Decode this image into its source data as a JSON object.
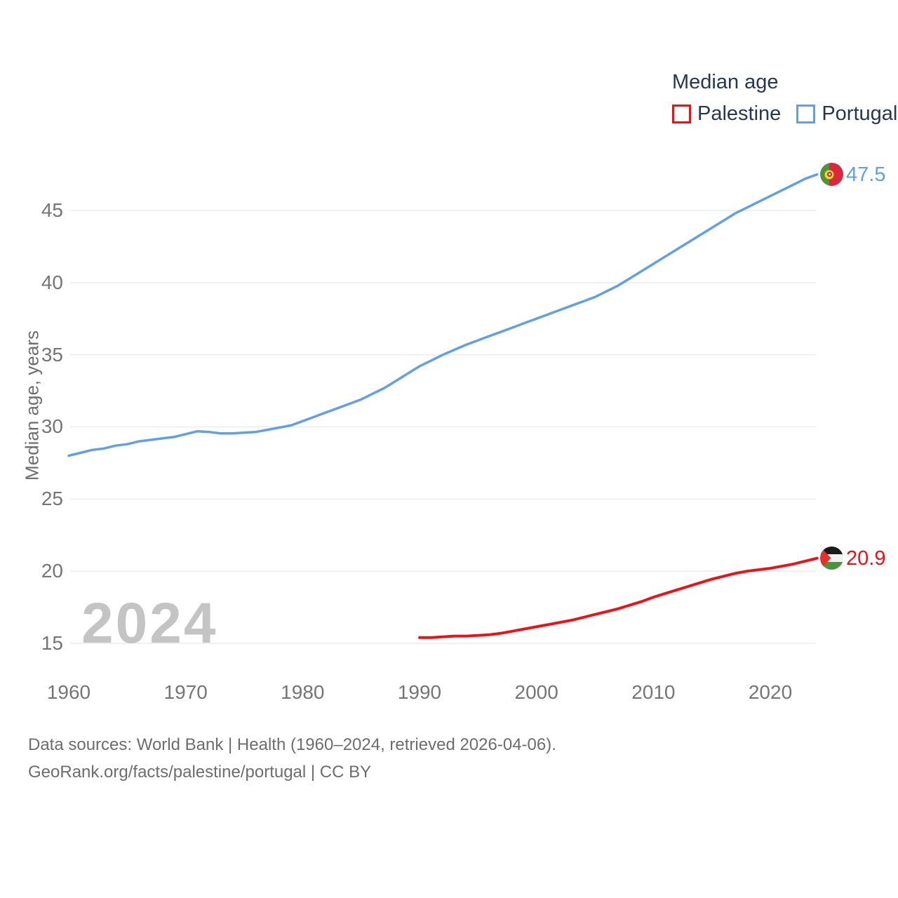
{
  "colors": {
    "palestine_red": "#f20f14",
    "portugal_blue": "#62a0e3",
    "gridline": "#ececec",
    "axis_text": "#757575",
    "legend_text": "#253754",
    "footer_text": "#6d6d6d",
    "watermark_text": "#c4c4c4"
  },
  "legend": {
    "title": "Median age",
    "items": [
      {
        "label": "Palestine",
        "color": "#f20f14"
      },
      {
        "label": "Portugal",
        "color": "#62a0e3"
      }
    ]
  },
  "watermark": "2024",
  "end_labels": {
    "portugal": "47.5",
    "palestine": "20.9"
  },
  "flags": {
    "portugal": "portugal-flag-icon",
    "palestine": "palestine-flag-icon"
  },
  "footer": {
    "line1": "Data sources: World Bank | Health (1960–2024, retrieved 2026-04-06).",
    "line2": "GeoRank.org/facts/palestine/portugal | CC BY"
  },
  "chart_data": {
    "type": "line",
    "title": "Median age",
    "xlabel": "",
    "ylabel": "Median age, years",
    "xlim": [
      1960,
      2024
    ],
    "ylim": [
      14,
      48.5
    ],
    "x_ticks": [
      1960,
      1970,
      1980,
      1990,
      2000,
      2010,
      2020
    ],
    "y_ticks": [
      15,
      20,
      25,
      30,
      35,
      40,
      45
    ],
    "grid": "horizontal",
    "legend_position": "top-right",
    "series": [
      {
        "name": "Portugal",
        "color": "#62a0e3",
        "start_year": 1960,
        "end_year": 2024,
        "end_value_label": "47.5",
        "values": [
          28.0,
          28.2,
          28.4,
          28.5,
          28.7,
          28.8,
          29.0,
          29.1,
          29.2,
          29.3,
          29.5,
          29.7,
          29.65,
          29.55,
          29.55,
          29.6,
          29.65,
          29.8,
          29.95,
          30.1,
          30.4,
          30.7,
          31.0,
          31.3,
          31.6,
          31.9,
          32.3,
          32.7,
          33.2,
          33.7,
          34.2,
          34.6,
          35.0,
          35.35,
          35.7,
          36.0,
          36.3,
          36.6,
          36.9,
          37.2,
          37.5,
          37.8,
          38.1,
          38.4,
          38.7,
          39.0,
          39.4,
          39.8,
          40.3,
          40.8,
          41.3,
          41.8,
          42.3,
          42.8,
          43.3,
          43.8,
          44.3,
          44.8,
          45.2,
          45.6,
          46.0,
          46.4,
          46.8,
          47.2,
          47.5
        ]
      },
      {
        "name": "Palestine",
        "color": "#f20f14",
        "start_year": 1990,
        "end_year": 2024,
        "end_value_label": "20.9",
        "values": [
          15.4,
          15.4,
          15.45,
          15.5,
          15.5,
          15.55,
          15.6,
          15.7,
          15.85,
          16.0,
          16.15,
          16.3,
          16.45,
          16.6,
          16.8,
          17.0,
          17.2,
          17.4,
          17.65,
          17.9,
          18.2,
          18.45,
          18.7,
          18.95,
          19.2,
          19.45,
          19.65,
          19.85,
          20.0,
          20.1,
          20.2,
          20.35,
          20.5,
          20.7,
          20.9
        ]
      }
    ]
  }
}
